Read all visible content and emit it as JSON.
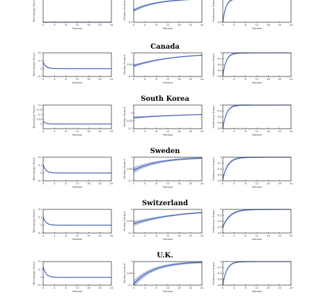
{
  "colors": {
    "line": "#3e5bb0",
    "band": "#a8b4dc",
    "axis": "#000000"
  },
  "chart_data": [
    {
      "country": "",
      "panels": [
        {
          "type": "line",
          "ylabel": "Technology Shock",
          "xlabel": "Horizon",
          "xlim": [
            0,
            24
          ],
          "xticks": [
            0,
            4,
            8,
            12,
            16,
            20,
            24
          ],
          "ylim": [
            0,
            0.2
          ],
          "yticks": [],
          "curve": "none",
          "band": 0.004
        },
        {
          "type": "line",
          "ylabel": "Foreign Output",
          "xlabel": "Horizon",
          "xlim": [
            0,
            24
          ],
          "xticks": [
            0,
            4,
            8,
            12,
            16,
            20,
            24
          ],
          "ylim": [
            -0.1,
            0
          ],
          "yticks": [
            -0.1
          ],
          "curve": "rise",
          "start": -0.05,
          "tau": 8,
          "band": 0.006
        },
        {
          "type": "line",
          "ylabel": "Preference Shock",
          "xlabel": "Horizon",
          "xlim": [
            0,
            24
          ],
          "xticks": [
            0,
            4,
            8,
            12,
            16,
            20,
            24
          ],
          "ylim": [
            -0.8,
            0
          ],
          "yticks": [
            -0.8
          ],
          "curve": "fast",
          "start": -0.8,
          "tau": 1.1,
          "band": 0.03
        }
      ]
    },
    {
      "country": "Canada",
      "panels": [
        {
          "type": "line",
          "ylabel": "Technology Shock",
          "xlabel": "Horizon",
          "xlim": [
            0,
            24
          ],
          "xticks": [
            0,
            4,
            8,
            12,
            16,
            20,
            24
          ],
          "ylim": [
            -0.1,
            0.2
          ],
          "yticks": [
            -0.1,
            0,
            0.1,
            0.2
          ],
          "curve": "decay",
          "start": 0.08,
          "tau": 1,
          "band": 0.006
        },
        {
          "type": "line",
          "ylabel": "Foreign Output",
          "xlabel": "Horizon",
          "xlim": [
            0,
            24
          ],
          "xticks": [
            0,
            4,
            8,
            12,
            16,
            20,
            24
          ],
          "ylim": [
            -0.1,
            0
          ],
          "yticks": [
            -0.1,
            -0.05,
            0
          ],
          "curve": "rise",
          "start": -0.055,
          "tau": 14,
          "band": 0.005
        },
        {
          "type": "line",
          "ylabel": "Preference Shock",
          "xlabel": "Horizon",
          "xlim": [
            0,
            24
          ],
          "xticks": [
            0,
            4,
            8,
            12,
            16,
            20,
            24
          ],
          "ylim": [
            -0.8,
            0
          ],
          "yticks": [
            -0.8,
            -0.6,
            -0.4,
            -0.2,
            0
          ],
          "curve": "fast",
          "start": -0.78,
          "tau": 1.2,
          "band": 0.03
        }
      ]
    },
    {
      "country": "South Korea",
      "panels": [
        {
          "type": "line",
          "ylabel": "Technology Shock",
          "xlabel": "Horizon",
          "xlim": [
            0,
            24
          ],
          "xticks": [
            0,
            4,
            8,
            12,
            16,
            20,
            24
          ],
          "ylim": [
            -0.05,
            0.2
          ],
          "yticks": [
            0,
            0.05,
            0.1,
            0.15,
            0.2
          ],
          "curve": "decay",
          "start": 0.03,
          "tau": 0.8,
          "band": 0.004
        },
        {
          "type": "line",
          "ylabel": "Foreign Output",
          "xlabel": "Horizon",
          "xlim": [
            0,
            24
          ],
          "xticks": [
            0,
            4,
            8,
            12,
            16,
            20,
            24
          ],
          "ylim": [
            -0.1,
            0.05
          ],
          "yticks": [
            -0.1,
            -0.05,
            0
          ],
          "curve": "rise",
          "start": -0.03,
          "tau": 22,
          "band": 0.006
        },
        {
          "type": "line",
          "ylabel": "Preference Shock",
          "xlabel": "Horizon",
          "xlim": [
            0,
            24
          ],
          "xticks": [
            0,
            4,
            8,
            12,
            16,
            20,
            24
          ],
          "ylim": [
            -0.8,
            0
          ],
          "yticks": [
            -0.8,
            -0.6,
            -0.4,
            -0.2,
            0
          ],
          "curve": "fast",
          "start": -0.8,
          "tau": 1.3,
          "band": 0.03
        }
      ]
    },
    {
      "country": "Sweden",
      "panels": [
        {
          "type": "line",
          "ylabel": "Technology Shock",
          "xlabel": "Horizon",
          "xlim": [
            0,
            24
          ],
          "xticks": [
            0,
            4,
            8,
            12,
            16,
            20,
            24
          ],
          "ylim": [
            -0.1,
            0.2
          ],
          "yticks": [
            -0.1,
            0,
            0.1,
            0.2
          ],
          "curve": "decay",
          "start": 0.1,
          "tau": 1,
          "band": 0.006
        },
        {
          "type": "line",
          "ylabel": "Foreign Output",
          "xlabel": "Horizon",
          "xlim": [
            0,
            24
          ],
          "xticks": [
            0,
            4,
            8,
            12,
            16,
            20,
            24
          ],
          "ylim": [
            -0.1,
            0
          ],
          "yticks": [
            -0.1,
            -0.05,
            0
          ],
          "curve": "rise",
          "start": -0.055,
          "tau": 9,
          "band": 0.01
        },
        {
          "type": "line",
          "ylabel": "Preference Shock",
          "xlabel": "Horizon",
          "xlim": [
            0,
            24
          ],
          "xticks": [
            0,
            4,
            8,
            12,
            16,
            20,
            24
          ],
          "ylim": [
            -0.8,
            0
          ],
          "yticks": [
            -0.8,
            -0.6,
            -0.4,
            -0.2,
            0
          ],
          "curve": "fast",
          "start": -0.75,
          "tau": 1.8,
          "band": 0.04
        }
      ]
    },
    {
      "country": "Switzerland",
      "panels": [
        {
          "type": "line",
          "ylabel": "Technology Shock",
          "xlabel": "Horizon",
          "xlim": [
            0,
            24
          ],
          "xticks": [
            0,
            4,
            8,
            12,
            16,
            20,
            24
          ],
          "ylim": [
            -0.1,
            0.2
          ],
          "yticks": [
            -0.1,
            0,
            0.1,
            0.2
          ],
          "curve": "decay",
          "start": 0.1,
          "tau": 1,
          "band": 0.006
        },
        {
          "type": "line",
          "ylabel": "Foreign Output",
          "xlabel": "Horizon",
          "xlim": [
            0,
            24
          ],
          "xticks": [
            0,
            4,
            8,
            12,
            16,
            20,
            24
          ],
          "ylim": [
            -0.1,
            0
          ],
          "yticks": [
            -0.1,
            -0.05,
            0
          ],
          "curve": "rise",
          "start": -0.06,
          "tau": 16,
          "band": 0.008
        },
        {
          "type": "line",
          "ylabel": "Preference Shock",
          "xlabel": "Horizon",
          "xlim": [
            0,
            24
          ],
          "xticks": [
            0,
            4,
            8,
            12,
            16,
            20,
            24
          ],
          "ylim": [
            -0.8,
            0
          ],
          "yticks": [
            -0.8,
            -0.6,
            -0.4,
            -0.2,
            0
          ],
          "curve": "fast",
          "start": -0.6,
          "tau": 2.5,
          "band": 0.04
        }
      ]
    },
    {
      "country": "U.K.",
      "panels": [
        {
          "type": "line",
          "ylabel": "Technology Shock",
          "xlabel": "Horizon",
          "xlim": [
            0,
            24
          ],
          "xticks": [
            0,
            4,
            8,
            12,
            16,
            20,
            24
          ],
          "ylim": [
            -0.1,
            0.2
          ],
          "yticks": [
            -0.1,
            0,
            0.1,
            0.2
          ],
          "curve": "decay",
          "start": 0.13,
          "tau": 1,
          "band": 0.006
        },
        {
          "type": "line",
          "ylabel": "Foreign Output",
          "xlabel": "Horizon",
          "xlim": [
            0,
            24
          ],
          "xticks": [
            0,
            4,
            8,
            12,
            16,
            20,
            24
          ],
          "ylim": [
            -0.1,
            0
          ],
          "yticks": [
            -0.1,
            -0.05,
            0
          ],
          "curve": "rise",
          "start": -0.095,
          "tau": 7,
          "band": 0.012
        },
        {
          "type": "line",
          "ylabel": "Preference Shock",
          "xlabel": "Horizon",
          "xlim": [
            0,
            24
          ],
          "xticks": [
            0,
            4,
            8,
            12,
            16,
            20,
            24
          ],
          "ylim": [
            -0.8,
            0
          ],
          "yticks": [
            -0.8,
            -0.6,
            -0.4,
            -0.2,
            0
          ],
          "curve": "fast",
          "start": -0.8,
          "tau": 1.4,
          "band": 0.03
        }
      ]
    }
  ]
}
